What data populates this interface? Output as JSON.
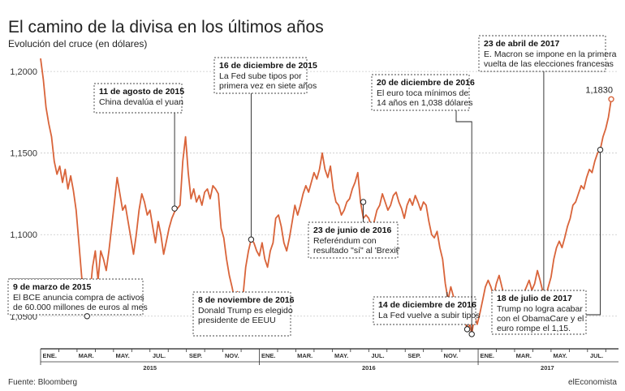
{
  "chart_data": {
    "type": "line",
    "title": "El camino de la divisa en los últimos años",
    "subtitle": "Evolución del cruce (en dólares)",
    "ylim": [
      1.03,
      1.21
    ],
    "yticks": [
      {
        "value": 1.05,
        "label": "1,0500"
      },
      {
        "value": 1.1,
        "label": "1,1000"
      },
      {
        "value": 1.15,
        "label": "1,1500"
      },
      {
        "value": 1.2,
        "label": "1,2000"
      }
    ],
    "month_labels": [
      {
        "m": 0.5,
        "label": "ENE."
      },
      {
        "m": 2.5,
        "label": "MAR."
      },
      {
        "m": 4.5,
        "label": "MAY."
      },
      {
        "m": 6.5,
        "label": "JUL."
      },
      {
        "m": 8.5,
        "label": "SEP."
      },
      {
        "m": 10.5,
        "label": "NOV."
      },
      {
        "m": 12.5,
        "label": "ENE."
      },
      {
        "m": 14.5,
        "label": "MAR."
      },
      {
        "m": 16.5,
        "label": "MAY."
      },
      {
        "m": 18.5,
        "label": "JUL."
      },
      {
        "m": 20.5,
        "label": "SEP."
      },
      {
        "m": 22.5,
        "label": "NOV."
      },
      {
        "m": 24.5,
        "label": "ENE."
      },
      {
        "m": 26.5,
        "label": "MAR."
      },
      {
        "m": 28.5,
        "label": "MAY."
      },
      {
        "m": 30.5,
        "label": "JUL."
      }
    ],
    "years": [
      {
        "m": 6,
        "label": "2015"
      },
      {
        "m": 18,
        "label": "2016"
      },
      {
        "m": 27.8,
        "label": "2017"
      }
    ],
    "end_label": "1,1830",
    "series": [
      {
        "color": "#d9643a",
        "points": [
          [
            0.0,
            1.208
          ],
          [
            0.15,
            1.195
          ],
          [
            0.3,
            1.178
          ],
          [
            0.45,
            1.168
          ],
          [
            0.6,
            1.16
          ],
          [
            0.75,
            1.145
          ],
          [
            0.9,
            1.137
          ],
          [
            1.05,
            1.142
          ],
          [
            1.2,
            1.132
          ],
          [
            1.35,
            1.14
          ],
          [
            1.5,
            1.128
          ],
          [
            1.65,
            1.136
          ],
          [
            1.8,
            1.127
          ],
          [
            1.95,
            1.115
          ],
          [
            2.1,
            1.095
          ],
          [
            2.25,
            1.075
          ],
          [
            2.4,
            1.058
          ],
          [
            2.55,
            1.05
          ],
          [
            2.7,
            1.062
          ],
          [
            2.85,
            1.08
          ],
          [
            3.0,
            1.09
          ],
          [
            3.15,
            1.072
          ],
          [
            3.3,
            1.09
          ],
          [
            3.45,
            1.085
          ],
          [
            3.6,
            1.078
          ],
          [
            3.75,
            1.09
          ],
          [
            3.9,
            1.105
          ],
          [
            4.05,
            1.12
          ],
          [
            4.2,
            1.135
          ],
          [
            4.35,
            1.125
          ],
          [
            4.5,
            1.115
          ],
          [
            4.65,
            1.118
          ],
          [
            4.8,
            1.108
          ],
          [
            4.95,
            1.098
          ],
          [
            5.1,
            1.088
          ],
          [
            5.25,
            1.1
          ],
          [
            5.4,
            1.115
          ],
          [
            5.55,
            1.125
          ],
          [
            5.7,
            1.12
          ],
          [
            5.85,
            1.112
          ],
          [
            6.0,
            1.115
          ],
          [
            6.15,
            1.105
          ],
          [
            6.3,
            1.095
          ],
          [
            6.45,
            1.108
          ],
          [
            6.6,
            1.1
          ],
          [
            6.75,
            1.088
          ],
          [
            6.9,
            1.096
          ],
          [
            7.05,
            1.104
          ],
          [
            7.2,
            1.11
          ],
          [
            7.35,
            1.114
          ],
          [
            7.5,
            1.116
          ],
          [
            7.65,
            1.118
          ],
          [
            7.8,
            1.145
          ],
          [
            7.95,
            1.16
          ],
          [
            8.1,
            1.138
          ],
          [
            8.25,
            1.122
          ],
          [
            8.4,
            1.128
          ],
          [
            8.55,
            1.12
          ],
          [
            8.7,
            1.124
          ],
          [
            8.85,
            1.118
          ],
          [
            9.0,
            1.126
          ],
          [
            9.15,
            1.128
          ],
          [
            9.3,
            1.122
          ],
          [
            9.45,
            1.13
          ],
          [
            9.6,
            1.128
          ],
          [
            9.75,
            1.125
          ],
          [
            9.9,
            1.104
          ],
          [
            10.05,
            1.098
          ],
          [
            10.2,
            1.085
          ],
          [
            10.35,
            1.075
          ],
          [
            10.5,
            1.068
          ],
          [
            10.65,
            1.06
          ],
          [
            10.8,
            1.065
          ],
          [
            10.95,
            1.058
          ],
          [
            11.1,
            1.062
          ],
          [
            11.25,
            1.08
          ],
          [
            11.4,
            1.09
          ],
          [
            11.55,
            1.097
          ],
          [
            11.7,
            1.095
          ],
          [
            11.85,
            1.09
          ],
          [
            12.0,
            1.087
          ],
          [
            12.15,
            1.095
          ],
          [
            12.3,
            1.085
          ],
          [
            12.45,
            1.08
          ],
          [
            12.6,
            1.09
          ],
          [
            12.75,
            1.095
          ],
          [
            12.9,
            1.11
          ],
          [
            13.05,
            1.112
          ],
          [
            13.2,
            1.105
          ],
          [
            13.35,
            1.095
          ],
          [
            13.5,
            1.09
          ],
          [
            13.65,
            1.098
          ],
          [
            13.8,
            1.108
          ],
          [
            13.95,
            1.118
          ],
          [
            14.1,
            1.112
          ],
          [
            14.25,
            1.118
          ],
          [
            14.4,
            1.125
          ],
          [
            14.55,
            1.13
          ],
          [
            14.7,
            1.126
          ],
          [
            14.85,
            1.132
          ],
          [
            15.0,
            1.138
          ],
          [
            15.15,
            1.134
          ],
          [
            15.3,
            1.14
          ],
          [
            15.45,
            1.15
          ],
          [
            15.6,
            1.14
          ],
          [
            15.75,
            1.135
          ],
          [
            15.9,
            1.142
          ],
          [
            16.05,
            1.128
          ],
          [
            16.2,
            1.12
          ],
          [
            16.35,
            1.118
          ],
          [
            16.5,
            1.112
          ],
          [
            16.65,
            1.115
          ],
          [
            16.8,
            1.12
          ],
          [
            16.95,
            1.122
          ],
          [
            17.1,
            1.128
          ],
          [
            17.25,
            1.132
          ],
          [
            17.4,
            1.138
          ],
          [
            17.55,
            1.12
          ],
          [
            17.7,
            1.11
          ],
          [
            17.85,
            1.112
          ],
          [
            18.0,
            1.11
          ],
          [
            18.15,
            1.105
          ],
          [
            18.3,
            1.108
          ],
          [
            18.45,
            1.115
          ],
          [
            18.6,
            1.118
          ],
          [
            18.75,
            1.125
          ],
          [
            18.9,
            1.12
          ],
          [
            19.05,
            1.115
          ],
          [
            19.2,
            1.118
          ],
          [
            19.35,
            1.124
          ],
          [
            19.5,
            1.126
          ],
          [
            19.65,
            1.12
          ],
          [
            19.8,
            1.116
          ],
          [
            19.95,
            1.11
          ],
          [
            20.1,
            1.118
          ],
          [
            20.25,
            1.122
          ],
          [
            20.4,
            1.118
          ],
          [
            20.55,
            1.124
          ],
          [
            20.7,
            1.12
          ],
          [
            20.85,
            1.115
          ],
          [
            21.0,
            1.12
          ],
          [
            21.15,
            1.118
          ],
          [
            21.3,
            1.108
          ],
          [
            21.45,
            1.1
          ],
          [
            21.6,
            1.098
          ],
          [
            21.75,
            1.102
          ],
          [
            21.9,
            1.092
          ],
          [
            22.05,
            1.085
          ],
          [
            22.2,
            1.07
          ],
          [
            22.35,
            1.06
          ],
          [
            22.5,
            1.068
          ],
          [
            22.65,
            1.062
          ],
          [
            22.8,
            1.055
          ],
          [
            22.95,
            1.058
          ],
          [
            23.1,
            1.052
          ],
          [
            23.25,
            1.048
          ],
          [
            23.4,
            1.042
          ],
          [
            23.55,
            1.045
          ],
          [
            23.65,
            1.039
          ],
          [
            23.8,
            1.05
          ],
          [
            23.95,
            1.045
          ],
          [
            24.1,
            1.052
          ],
          [
            24.25,
            1.06
          ],
          [
            24.4,
            1.068
          ],
          [
            24.55,
            1.072
          ],
          [
            24.7,
            1.068
          ],
          [
            24.85,
            1.062
          ],
          [
            25.0,
            1.07
          ],
          [
            25.15,
            1.075
          ],
          [
            25.3,
            1.068
          ],
          [
            25.45,
            1.062
          ],
          [
            25.6,
            1.06
          ],
          [
            25.75,
            1.055
          ],
          [
            25.9,
            1.06
          ],
          [
            26.05,
            1.065
          ],
          [
            26.2,
            1.058
          ],
          [
            26.35,
            1.056
          ],
          [
            26.5,
            1.064
          ],
          [
            26.65,
            1.068
          ],
          [
            26.8,
            1.072
          ],
          [
            26.95,
            1.066
          ],
          [
            27.1,
            1.07
          ],
          [
            27.25,
            1.078
          ],
          [
            27.4,
            1.072
          ],
          [
            27.55,
            1.065
          ],
          [
            27.7,
            1.062
          ],
          [
            27.85,
            1.068
          ],
          [
            28.0,
            1.074
          ],
          [
            28.15,
            1.085
          ],
          [
            28.3,
            1.092
          ],
          [
            28.45,
            1.096
          ],
          [
            28.6,
            1.092
          ],
          [
            28.75,
            1.098
          ],
          [
            28.9,
            1.105
          ],
          [
            29.05,
            1.11
          ],
          [
            29.2,
            1.118
          ],
          [
            29.35,
            1.12
          ],
          [
            29.5,
            1.125
          ],
          [
            29.65,
            1.13
          ],
          [
            29.8,
            1.128
          ],
          [
            29.95,
            1.135
          ],
          [
            30.1,
            1.14
          ],
          [
            30.25,
            1.138
          ],
          [
            30.4,
            1.145
          ],
          [
            30.55,
            1.15
          ],
          [
            30.7,
            1.152
          ],
          [
            30.85,
            1.16
          ],
          [
            31.0,
            1.165
          ],
          [
            31.15,
            1.172
          ],
          [
            31.3,
            1.183
          ]
        ]
      }
    ],
    "annotations": [
      {
        "date": "9 de marzo de 2015",
        "head": "9 de marzo de 2015",
        "lines": [
          "El BCE anuncia compra de activos",
          "de 60.000 millones de euros al mes"
        ],
        "m": 2.55,
        "y": 1.05
      },
      {
        "date": "11 de agosto de 2015",
        "head": "11 de agosto de 2015",
        "lines": [
          "China devalúa el yuan"
        ],
        "m": 7.35,
        "y": 1.116
      },
      {
        "date": "8 de noviembre de 2016",
        "head": "8 de noviembre de 2016",
        "lines": [
          "Donald Trump es elegido",
          "presidente de EEUU"
        ],
        "m": 22.3,
        "y": 1.052
      },
      {
        "date": "16 de diciembre de 2015",
        "head": "16 de diciembre de 2015",
        "lines": [
          "La Fed sube tipos por",
          "primera vez en siete años"
        ],
        "m": 11.55,
        "y": 1.097
      },
      {
        "date": "23 de junio de 2016",
        "head": "23 de junio de 2016",
        "lines": [
          "Referéndum con",
          "resultado \"sí\" al 'Brexit'"
        ],
        "m": 17.7,
        "y": 1.12
      },
      {
        "date": "14 de diciembre de 2016",
        "head": "14 de diciembre de 2016",
        "lines": [
          "La Fed vuelve a subir tipos"
        ],
        "m": 23.4,
        "y": 1.042
      },
      {
        "date": "20 de diciembre de 2016",
        "head": "20 de diciembre de 2016",
        "lines": [
          "El euro toca mínimos de",
          "14 años en 1,038 dólares"
        ],
        "m": 23.65,
        "y": 1.039
      },
      {
        "date": "23 de abril de 2017",
        "head": "23 de abril de 2017",
        "lines": [
          "E. Macron se impone en la primera",
          "vuelta de las elecciones francesas"
        ],
        "m": 27.6,
        "y": 1.062
      },
      {
        "date": "18 de julio de 2017",
        "head": "18 de julio de 2017",
        "lines": [
          "Trump no logra acabar",
          "con el ObamaCare y el",
          "euro rompe el 1,15."
        ],
        "m": 30.7,
        "y": 1.152
      }
    ]
  },
  "footer": {
    "source": "Fuente: Bloomberg",
    "brand": "elEconomista"
  }
}
